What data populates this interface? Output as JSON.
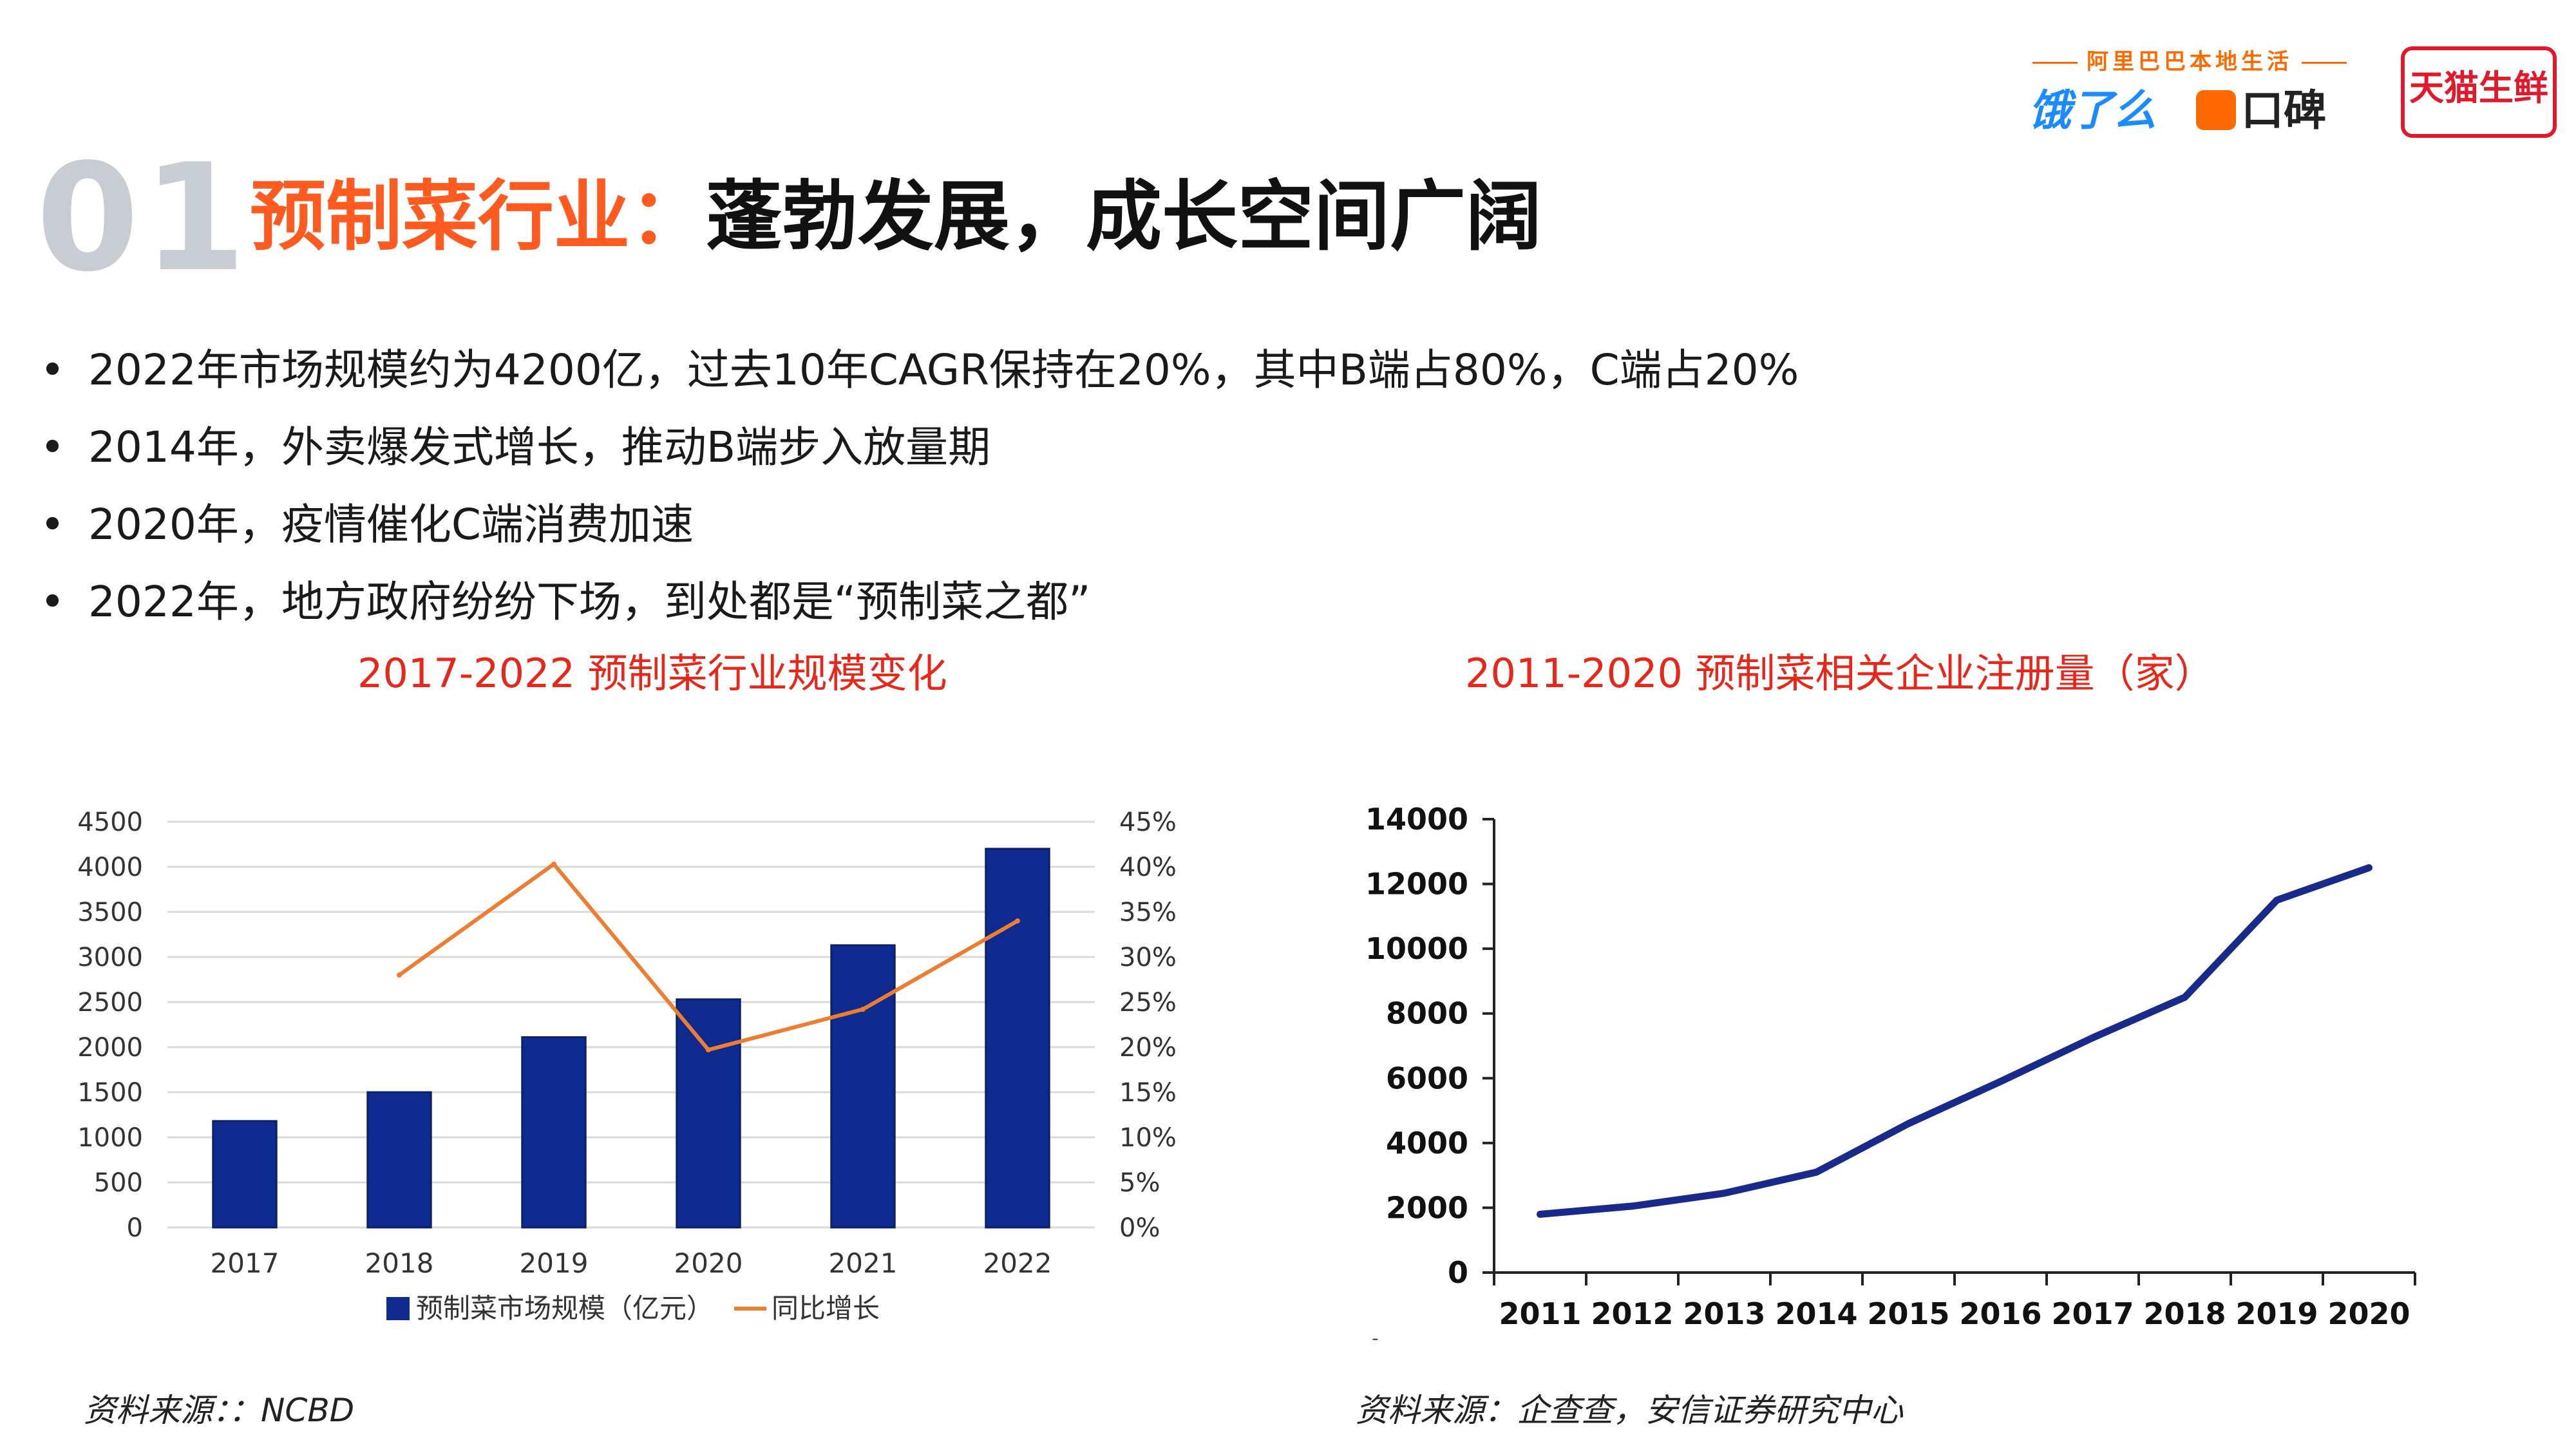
{
  "brand": {
    "tagline": "阿里巴巴本地生活",
    "eleme": "饿了么",
    "koubei": "口碑",
    "tmall": "天猫生鲜"
  },
  "section_number": "01",
  "title": {
    "accent": "预制菜行业：",
    "main": "蓬勃发展，成长空间广阔"
  },
  "bullets": [
    "2022年市场规模约为4200亿，过去10年CAGR保持在20%，其中B端占80%，C端占20%",
    "2014年，外卖爆发式增长，推动B端步入放量期",
    "2020年，疫情催化C端消费加速",
    "2022年，地方政府纷纷下场，到处都是“预制菜之都”"
  ],
  "colors": {
    "accent": "#ff5a1f",
    "chart_title": "#e8261a",
    "bar": "#0f2a8f",
    "line_orange": "#ed7d31",
    "line_navy": "#1a2a8a",
    "section_number": "#c7cdd3"
  },
  "chart_data": [
    {
      "type": "bar",
      "title": "2017-2022 预制菜行业规模变化",
      "categories": [
        "2017",
        "2018",
        "2019",
        "2020",
        "2021",
        "2022"
      ],
      "series": [
        {
          "name": "预制菜市场规模（亿元）",
          "type": "bar",
          "axis": "left",
          "values": [
            1180,
            1500,
            2110,
            2530,
            3130,
            4200
          ]
        },
        {
          "name": "同比增长",
          "type": "line",
          "axis": "right",
          "values": [
            null,
            0.28,
            0.403,
            0.197,
            0.242,
            0.34
          ]
        }
      ],
      "ylim": [
        0,
        4500
      ],
      "yticks": [
        "0",
        "500",
        "1000",
        "1500",
        "2000",
        "2500",
        "3000",
        "3500",
        "4000",
        "4500"
      ],
      "y2lim": [
        0,
        0.45
      ],
      "y2ticks": [
        "0%",
        "5%",
        "10%",
        "15%",
        "20%",
        "25%",
        "30%",
        "35%",
        "40%",
        "45%"
      ],
      "grid": true,
      "legend": "bottom",
      "source": "资料来源：：NCBD"
    },
    {
      "type": "line",
      "title": "2011-2020 预制菜相关企业注册量（家）",
      "categories": [
        "2011",
        "2012",
        "2013",
        "2014",
        "2015",
        "2016",
        "2017",
        "2018",
        "2019",
        "2020"
      ],
      "series": [
        {
          "values": [
            1800,
            2050,
            2450,
            3100,
            4600,
            5900,
            7250,
            8500,
            11500,
            12500
          ]
        }
      ],
      "ylim": [
        0,
        14000
      ],
      "yticks": [
        "0",
        "2000",
        "4000",
        "6000",
        "8000",
        "10000",
        "12000",
        "14000"
      ],
      "grid": false,
      "footnote": "-",
      "source": "资料来源：企查查，安信证券研究中心"
    }
  ]
}
